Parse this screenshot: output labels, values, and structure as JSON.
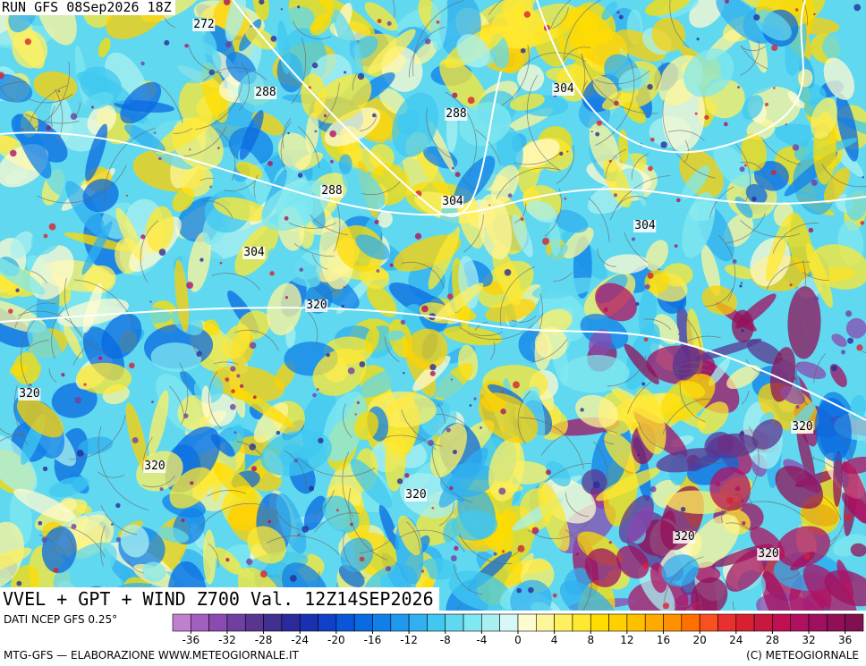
{
  "header": {
    "run": "RUN GFS 08Sep2026 18Z"
  },
  "map": {
    "title": "VVEL + GPT + WIND Z700 Val. 12Z14SEP2026",
    "contour_labels": [
      272,
      288,
      288,
      304,
      288,
      304,
      304,
      304,
      320,
      320,
      320,
      320,
      320,
      320,
      320
    ]
  },
  "colorbar": {
    "source": "DATI NCEP GFS 0.25°",
    "xlim": [
      -38,
      38
    ],
    "colors": [
      "#c080d0",
      "#a060c0",
      "#8a4ab0",
      "#7040a0",
      "#5a3590",
      "#403090",
      "#2a2a9a",
      "#1a30b0",
      "#1040c8",
      "#0a55d8",
      "#0a6ae0",
      "#1080e8",
      "#2098f0",
      "#30b0f0",
      "#40c8f0",
      "#60d8f0",
      "#80e8f0",
      "#a8f0f0",
      "#d8f8f8",
      "#fffbd0",
      "#fff59a",
      "#fff060",
      "#ffe830",
      "#ffdc00",
      "#ffd000",
      "#ffc000",
      "#ffaa00",
      "#ff9000",
      "#ff7000",
      "#f85020",
      "#e83030",
      "#d82030",
      "#c81840",
      "#c01050",
      "#b01060",
      "#a01060",
      "#901058",
      "#801050"
    ],
    "ticks": [
      -36,
      -32,
      -28,
      -24,
      -20,
      -16,
      -12,
      -8,
      -4,
      0,
      4,
      8,
      12,
      16,
      20,
      24,
      28,
      32,
      36
    ]
  },
  "footer": {
    "left": "MTG-GFS — ELABORAZIONE WWW.METEOGIORNALE.IT",
    "right": "(C) METEOGIORNALE"
  }
}
